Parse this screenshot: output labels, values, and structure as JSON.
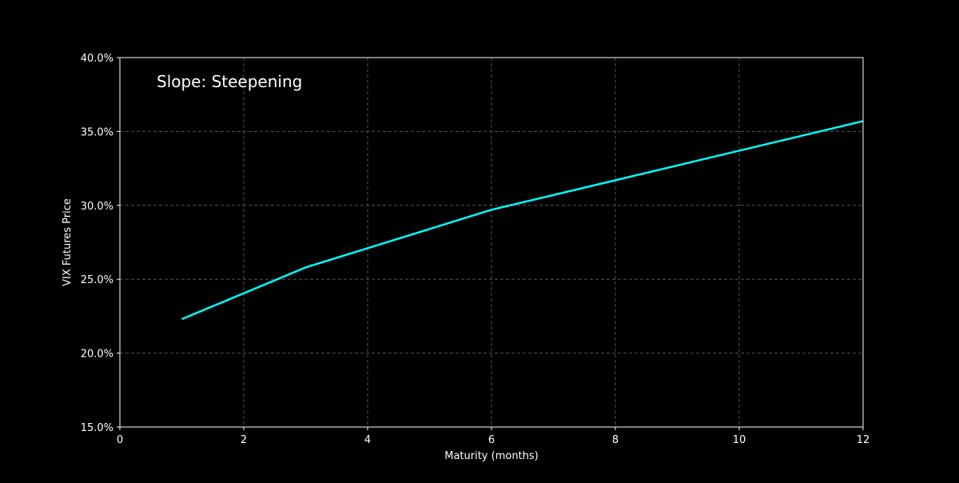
{
  "chart_data": {
    "type": "line",
    "title": "",
    "annotation": "Slope: Steepening",
    "xlabel": "Maturity (months)",
    "ylabel": "VIX Futures Price",
    "xlim": [
      0,
      12
    ],
    "ylim": [
      15,
      40
    ],
    "x_ticks": [
      0,
      2,
      4,
      6,
      8,
      10,
      12
    ],
    "y_ticks": [
      15,
      20,
      25,
      30,
      35,
      40
    ],
    "y_tick_labels": [
      "15.0%",
      "20.0%",
      "25.0%",
      "30.0%",
      "35.0%",
      "40.0%"
    ],
    "grid": true,
    "series": [
      {
        "x": [
          1,
          3,
          6,
          9,
          12
        ],
        "values": [
          22.3,
          25.8,
          29.7,
          32.7,
          35.7
        ],
        "color": "#00ffff"
      }
    ],
    "background": "#000000"
  }
}
